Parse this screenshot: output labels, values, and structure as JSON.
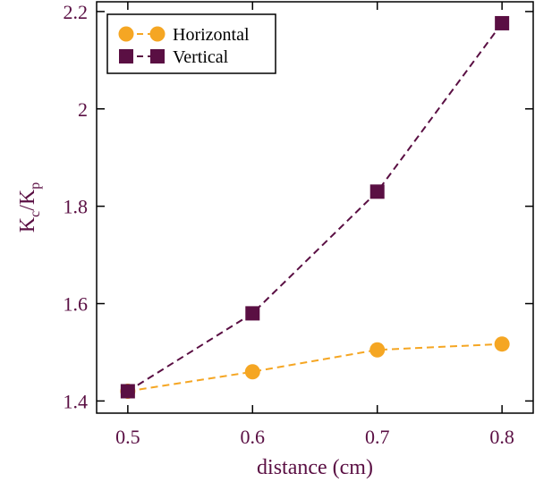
{
  "colors": {
    "axis": "#000000",
    "label": "#5a0f43",
    "horizontal": "#f5a623",
    "vertical": "#5a0f43"
  },
  "chart_data": {
    "type": "line",
    "xlabel": "distance (cm)",
    "ylabel": {
      "base": "K",
      "sub1": "c",
      "mid": "/K",
      "sub2": "p"
    },
    "x": [
      0.5,
      0.6,
      0.7,
      0.8
    ],
    "xlim": [
      0.475,
      0.825
    ],
    "ylim": [
      1.375,
      2.22
    ],
    "xticks": [
      {
        "value": 0.5,
        "label": "0.5"
      },
      {
        "value": 0.6,
        "label": "0.6"
      },
      {
        "value": 0.7,
        "label": "0.7"
      },
      {
        "value": 0.8,
        "label": "0.8"
      }
    ],
    "yticks": [
      {
        "value": 1.4,
        "label": "1.4"
      },
      {
        "value": 1.6,
        "label": "1.6"
      },
      {
        "value": 1.8,
        "label": "1.8"
      },
      {
        "value": 2.0,
        "label": "2"
      },
      {
        "value": 2.2,
        "label": "2.2"
      }
    ],
    "legend_position": "top-left",
    "grid": false,
    "series": [
      {
        "name": "Horizontal",
        "marker": "circle",
        "color": "#f5a623",
        "line": "dashed",
        "values": [
          1.42,
          1.46,
          1.505,
          1.517
        ]
      },
      {
        "name": "Vertical",
        "marker": "square",
        "color": "#5a0f43",
        "line": "dashed",
        "values": [
          1.42,
          1.58,
          1.83,
          2.176
        ]
      }
    ]
  }
}
